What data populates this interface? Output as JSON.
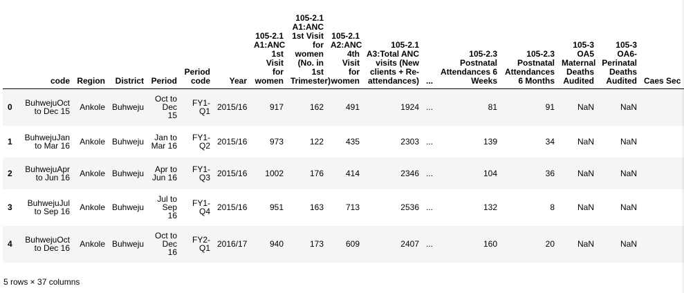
{
  "table": {
    "columns": {
      "index": "",
      "code": "code",
      "region": "Region",
      "district": "District",
      "period": "Period",
      "period_code": "Period code",
      "year": "Year",
      "c1": "105-2.1 A1:ANC 1st Visit for women",
      "c2": "105-2.1 A1:ANC 1st Visit for women (No. in 1st Trimester)",
      "c3": "105-2.1 A2:ANC 4th Visit for women",
      "c4": "105-2.1 A3:Total ANC visits (New clients + Re-attendances)",
      "ellipsis": "...",
      "c5": "105-2.3 Postnatal Attendances 6 Weeks",
      "c6": "105-2.3 Postnatal Attendances 6 Months",
      "c7": "105-3 OA5 Maternal Deaths Audited",
      "c8": "105-3 OA6-Perinatal Deaths Audited",
      "c9": "Caes Sec"
    },
    "rows": [
      {
        "index": "0",
        "code": "BuhwejuOct to Dec 15",
        "region": "Ankole",
        "district": "Buhweju",
        "period": "Oct to Dec 15",
        "period_code": "FY1-Q1",
        "year": "2015/16",
        "c1": "917",
        "c2": "162",
        "c3": "491",
        "c4": "1924",
        "ellipsis": "...",
        "c5": "81",
        "c6": "91",
        "c7": "NaN",
        "c8": "NaN"
      },
      {
        "index": "1",
        "code": "BuhwejuJan to Mar 16",
        "region": "Ankole",
        "district": "Buhweju",
        "period": "Jan to Mar 16",
        "period_code": "FY1-Q2",
        "year": "2015/16",
        "c1": "973",
        "c2": "122",
        "c3": "435",
        "c4": "2303",
        "ellipsis": "...",
        "c5": "139",
        "c6": "34",
        "c7": "NaN",
        "c8": "NaN"
      },
      {
        "index": "2",
        "code": "BuhwejuApr to Jun 16",
        "region": "Ankole",
        "district": "Buhweju",
        "period": "Apr to Jun 16",
        "period_code": "FY1-Q3",
        "year": "2015/16",
        "c1": "1002",
        "c2": "176",
        "c3": "414",
        "c4": "2346",
        "ellipsis": "...",
        "c5": "104",
        "c6": "36",
        "c7": "NaN",
        "c8": "NaN"
      },
      {
        "index": "3",
        "code": "BuhwejuJul to Sep 16",
        "region": "Ankole",
        "district": "Buhweju",
        "period": "Jul to Sep 16",
        "period_code": "FY1-Q4",
        "year": "2015/16",
        "c1": "951",
        "c2": "163",
        "c3": "713",
        "c4": "2536",
        "ellipsis": "...",
        "c5": "132",
        "c6": "8",
        "c7": "NaN",
        "c8": "NaN"
      },
      {
        "index": "4",
        "code": "BuhwejuOct to Dec 16",
        "region": "Ankole",
        "district": "Buhweju",
        "period": "Oct to Dec 16",
        "period_code": "FY2-Q1",
        "year": "2016/17",
        "c1": "940",
        "c2": "173",
        "c3": "609",
        "c4": "2407",
        "ellipsis": "...",
        "c5": "160",
        "c6": "20",
        "c7": "NaN",
        "c8": "NaN"
      }
    ]
  },
  "footer": {
    "shape_text": "5 rows × 37 columns"
  }
}
